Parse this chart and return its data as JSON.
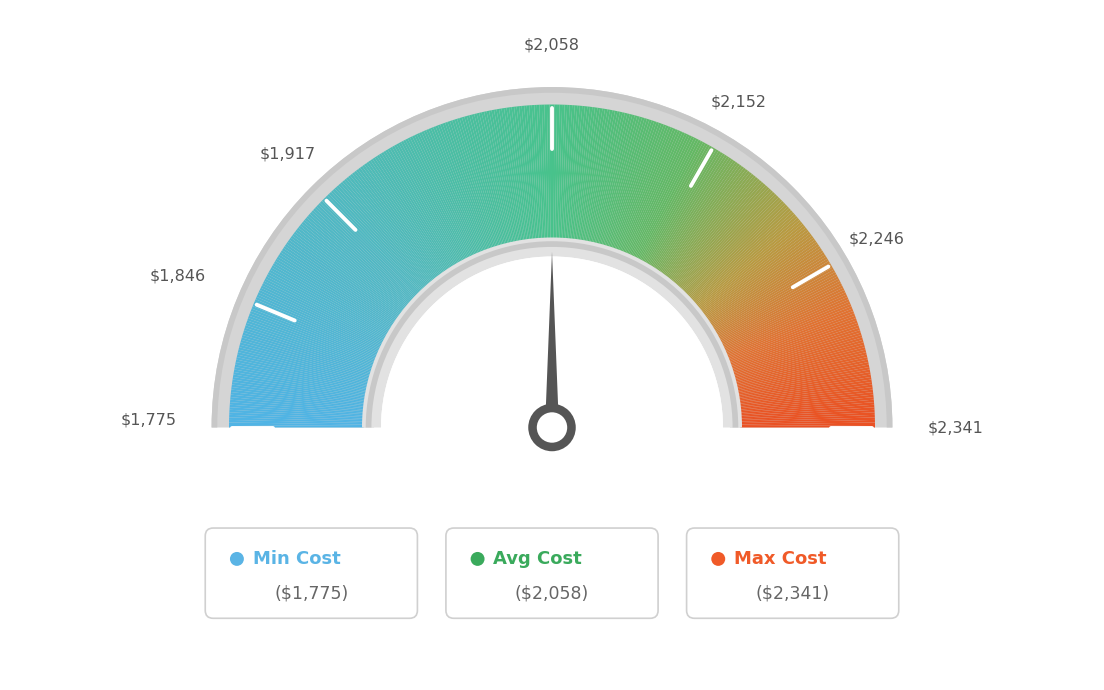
{
  "min_val": 1775,
  "avg_val": 2058,
  "max_val": 2341,
  "tick_labels": [
    "$1,775",
    "$1,846",
    "$1,917",
    "$2,058",
    "$2,152",
    "$2,246",
    "$2,341"
  ],
  "tick_values": [
    1775,
    1846,
    1917,
    2058,
    2152,
    2246,
    2341
  ],
  "legend_min_label": "Min Cost",
  "legend_avg_label": "Avg Cost",
  "legend_max_label": "Max Cost",
  "legend_min_val": "($1,775)",
  "legend_avg_val": "($2,058)",
  "legend_max_val": "($2,341)",
  "legend_min_color": "#5ab4e5",
  "legend_avg_color": "#3aaa5c",
  "legend_max_color": "#f05a28",
  "bg_color": "#ffffff",
  "needle_value": 2058,
  "color_stops": [
    [
      0.0,
      [
        80,
        180,
        230
      ]
    ],
    [
      0.25,
      [
        80,
        185,
        195
      ]
    ],
    [
      0.5,
      [
        72,
        195,
        140
      ]
    ],
    [
      0.65,
      [
        100,
        185,
        100
      ]
    ],
    [
      0.78,
      [
        185,
        155,
        65
      ]
    ],
    [
      0.88,
      [
        225,
        115,
        50
      ]
    ],
    [
      1.0,
      [
        235,
        80,
        35
      ]
    ]
  ]
}
